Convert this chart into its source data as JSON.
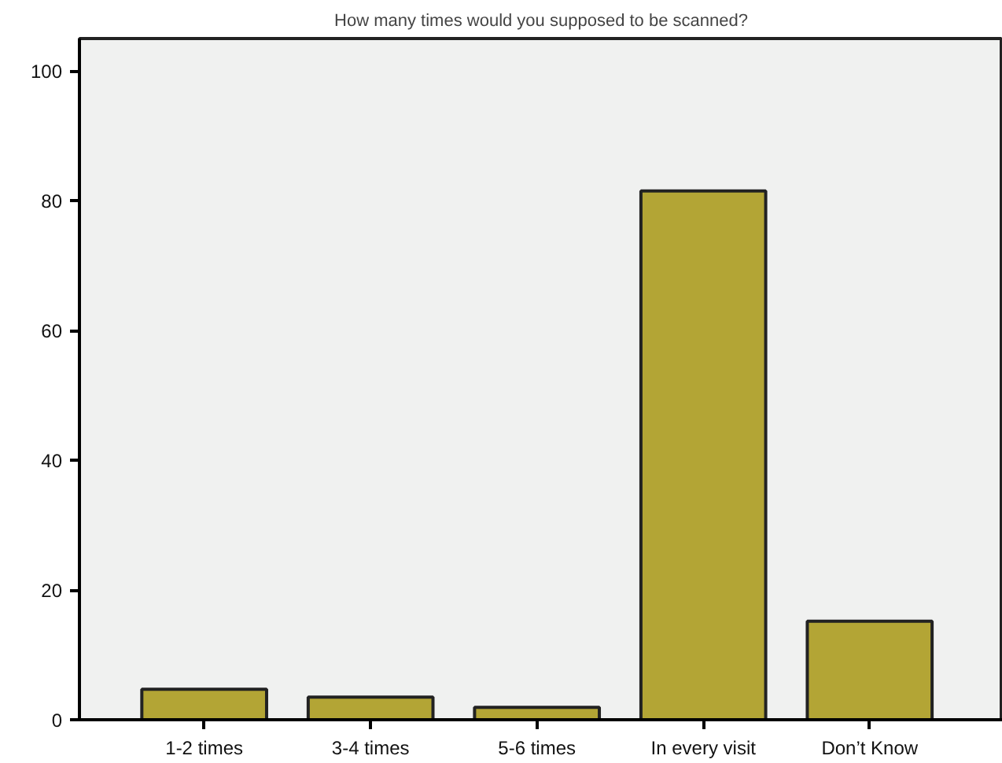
{
  "chart_data": {
    "type": "bar",
    "title": "How many times would you supposed to be scanned?",
    "categories": [
      "1-2 times",
      "3-4 times",
      "5-6 times",
      "In every visit",
      "Don’t Know"
    ],
    "values": [
      4.7,
      3.5,
      1.9,
      81.5,
      15.2
    ],
    "color": "#b3a535",
    "ylim": [
      0,
      105
    ],
    "yticks": [
      0,
      20,
      40,
      60,
      80,
      100
    ],
    "grid": false
  }
}
